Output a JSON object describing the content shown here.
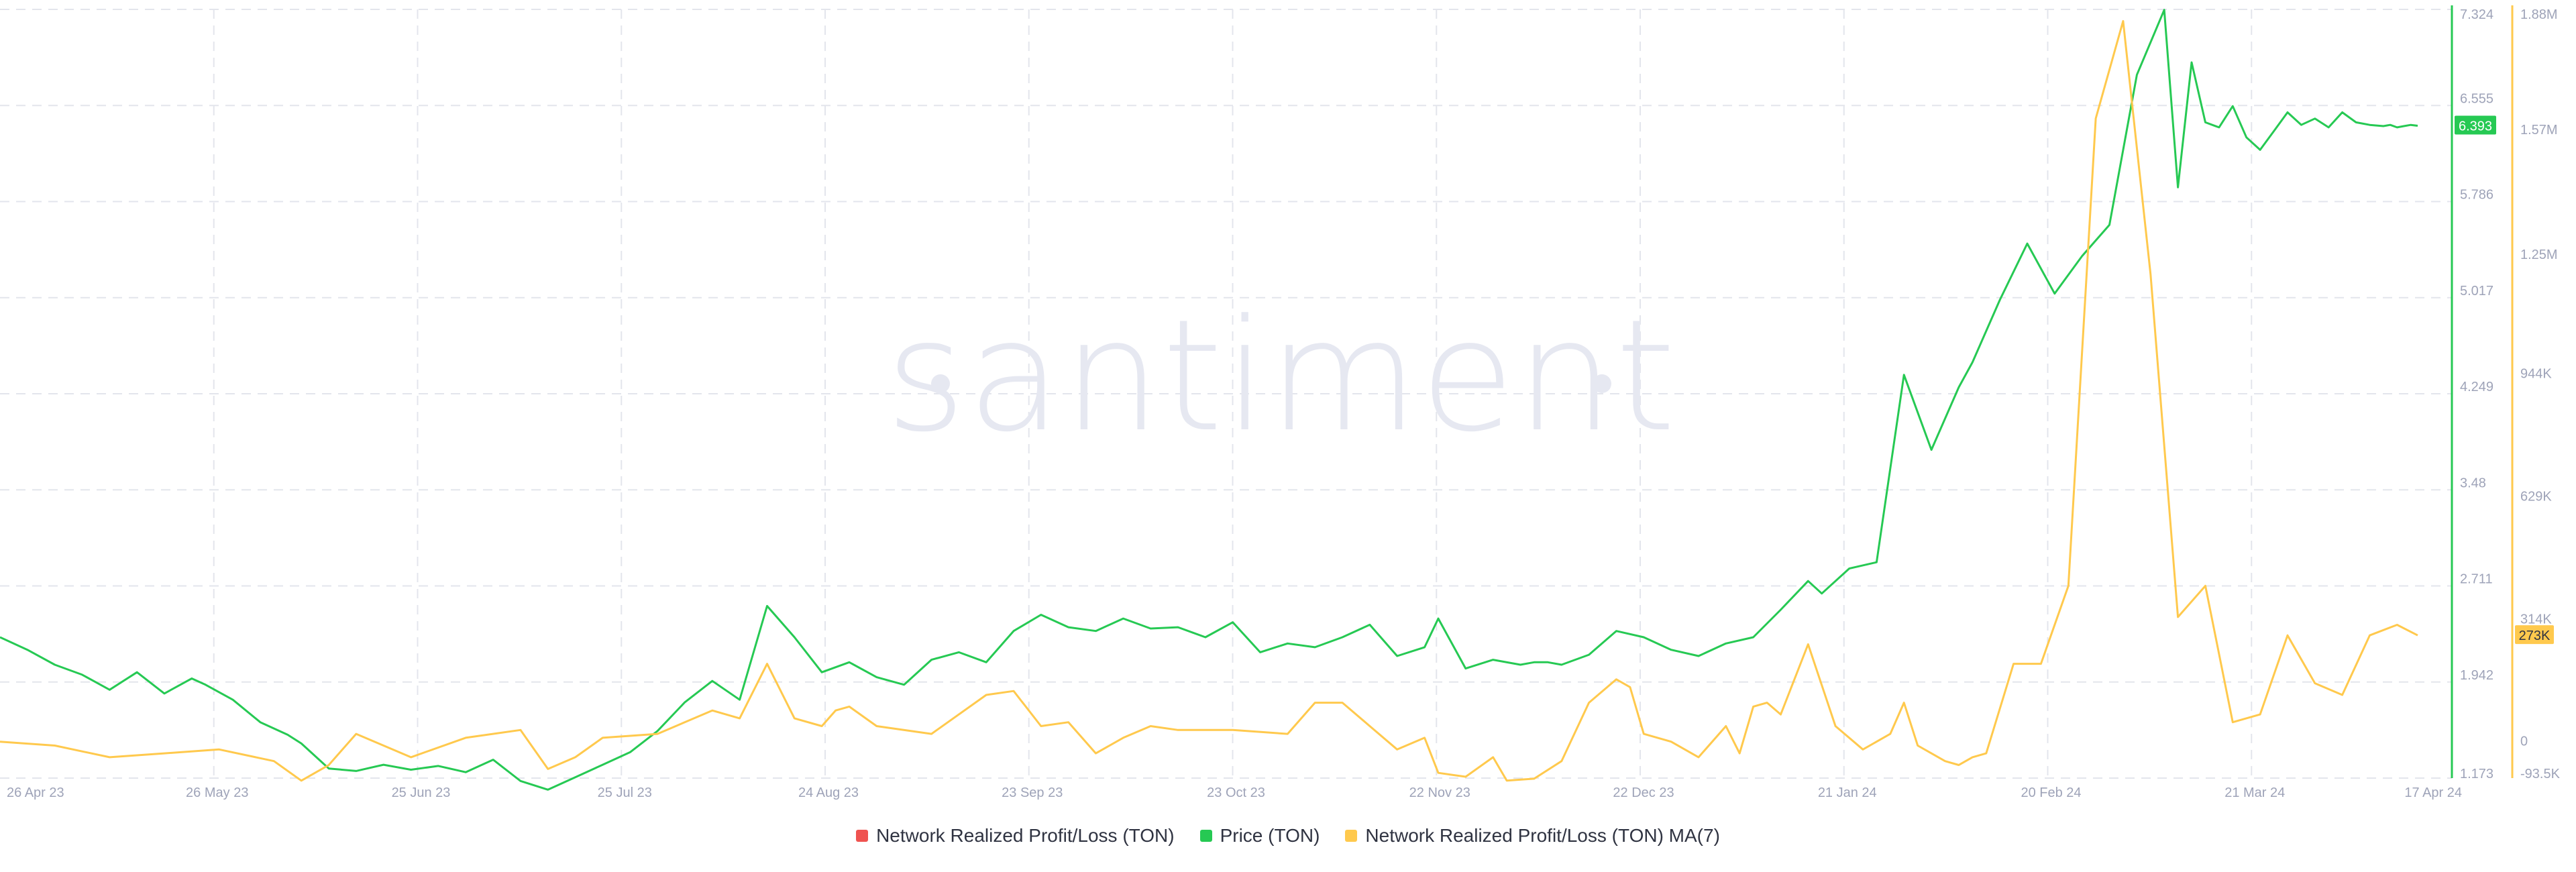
{
  "watermark": "santiment",
  "legend": [
    {
      "label": "Network Realized Profit/Loss (TON)",
      "color": "#ef5350"
    },
    {
      "label": "Price (TON)",
      "color": "#26c953"
    },
    {
      "label": "Network Realized Profit/Loss (TON) MA(7)",
      "color": "#ffc94d"
    }
  ],
  "colors": {
    "price": "#26c953",
    "ma": "#ffc94d",
    "grid": "#e3e5ec",
    "axis_text": "#9ea3b8"
  },
  "chart_data": {
    "type": "line",
    "x_ticks": [
      "26 Apr 23",
      "26 May 23",
      "25 Jun 23",
      "25 Jul 23",
      "24 Aug 23",
      "23 Sep 23",
      "23 Oct 23",
      "22 Nov 23",
      "22 Dec 23",
      "21 Jan 24",
      "20 Feb 24",
      "21 Mar 24",
      "17 Apr 24"
    ],
    "x_range_days": [
      -4,
      354
    ],
    "y_left": {
      "ticks": [
        "7.324",
        "6.555",
        "5.786",
        "5.017",
        "4.249",
        "3.48",
        "2.711",
        "1.942",
        "1.173"
      ],
      "range": [
        1.173,
        7.324
      ]
    },
    "y_right": {
      "ticks": [
        "1.88M",
        "1.57M",
        "1.25M",
        "944K",
        "629K",
        "314K",
        "0",
        "-93.5K"
      ],
      "range": [
        -93500,
        1880000
      ]
    },
    "current_price_label": "6.393",
    "current_ma_label": "273K",
    "series": [
      {
        "name": "Price (TON)",
        "axis": "left",
        "x_days": [
          -4,
          0,
          4,
          8,
          12,
          16,
          20,
          24,
          26,
          30,
          34,
          38,
          40,
          44,
          48,
          52,
          56,
          60,
          64,
          68,
          72,
          76,
          80,
          84,
          88,
          92,
          96,
          100,
          104,
          108,
          112,
          116,
          120,
          124,
          128,
          132,
          136,
          140,
          144,
          148,
          152,
          156,
          160,
          164,
          168,
          172,
          176,
          180,
          184,
          188,
          192,
          196,
          200,
          204,
          206,
          210,
          214,
          218,
          220,
          222,
          224,
          228,
          232,
          236,
          240,
          244,
          248,
          252,
          256,
          260,
          262,
          266,
          270,
          274,
          278,
          282,
          284,
          288,
          292,
          296,
          300,
          304,
          308,
          312,
          314,
          316,
          318,
          320,
          322,
          324,
          326,
          328,
          330,
          332,
          334,
          336,
          338,
          340,
          342,
          344,
          345,
          346,
          347,
          348,
          349
        ],
        "values": [
          2.3,
          2.2,
          2.08,
          2.0,
          1.88,
          2.02,
          1.85,
          1.97,
          1.92,
          1.8,
          1.62,
          1.52,
          1.45,
          1.25,
          1.23,
          1.28,
          1.24,
          1.27,
          1.22,
          1.32,
          1.15,
          1.08,
          1.18,
          1.28,
          1.38,
          1.55,
          1.78,
          1.95,
          1.8,
          2.55,
          2.3,
          2.02,
          2.1,
          1.98,
          1.92,
          2.12,
          2.18,
          2.1,
          2.35,
          2.48,
          2.38,
          2.35,
          2.45,
          2.37,
          2.38,
          2.3,
          2.42,
          2.18,
          2.25,
          2.22,
          2.3,
          2.4,
          2.15,
          2.22,
          2.45,
          2.05,
          2.12,
          2.08,
          2.1,
          2.1,
          2.08,
          2.16,
          2.35,
          2.3,
          2.2,
          2.15,
          2.25,
          2.3,
          2.52,
          2.75,
          2.65,
          2.85,
          2.9,
          4.4,
          3.8,
          4.3,
          4.5,
          5.0,
          5.45,
          5.05,
          5.35,
          5.6,
          6.8,
          7.32,
          5.9,
          6.9,
          6.42,
          6.38,
          6.55,
          6.3,
          6.2,
          6.35,
          6.5,
          6.4,
          6.45,
          6.38,
          6.5,
          6.42,
          6.4,
          6.39,
          6.4,
          6.38,
          6.39,
          6.4,
          6.393
        ]
      },
      {
        "name": "Network Realized Profit/Loss (TON) MA(7)",
        "axis": "right",
        "x_days": [
          -4,
          4,
          12,
          20,
          28,
          36,
          40,
          44,
          48,
          56,
          64,
          72,
          76,
          80,
          84,
          92,
          100,
          104,
          108,
          112,
          116,
          118,
          120,
          124,
          132,
          140,
          144,
          148,
          152,
          156,
          160,
          164,
          168,
          176,
          184,
          188,
          192,
          196,
          200,
          204,
          206,
          210,
          214,
          216,
          220,
          224,
          228,
          232,
          234,
          236,
          240,
          244,
          248,
          250,
          252,
          254,
          256,
          260,
          264,
          268,
          272,
          274,
          276,
          278,
          280,
          282,
          284,
          286,
          290,
          294,
          298,
          302,
          306,
          310,
          314,
          318,
          322,
          326,
          330,
          334,
          338,
          342,
          346,
          349
        ],
        "values": [
          0,
          -10000,
          -40000,
          -30000,
          -20000,
          -50000,
          -100000,
          -60000,
          20000,
          -40000,
          10000,
          30000,
          -70000,
          -40000,
          10000,
          20000,
          80000,
          60000,
          200000,
          60000,
          40000,
          80000,
          90000,
          40000,
          20000,
          120000,
          130000,
          40000,
          50000,
          -30000,
          10000,
          40000,
          30000,
          30000,
          20000,
          100000,
          100000,
          40000,
          -20000,
          10000,
          -80000,
          -90000,
          -40000,
          -100000,
          -95000,
          -50000,
          100000,
          160000,
          140000,
          20000,
          0,
          -40000,
          40000,
          -30000,
          90000,
          100000,
          70000,
          250000,
          40000,
          -20000,
          20000,
          100000,
          -10000,
          -30000,
          -50000,
          -60000,
          -40000,
          -30000,
          200000,
          200000,
          400000,
          1600000,
          1850000,
          1200000,
          320000,
          400000,
          50000,
          70000,
          273000,
          150000,
          120000,
          273000,
          300000,
          273000
        ]
      }
    ]
  }
}
